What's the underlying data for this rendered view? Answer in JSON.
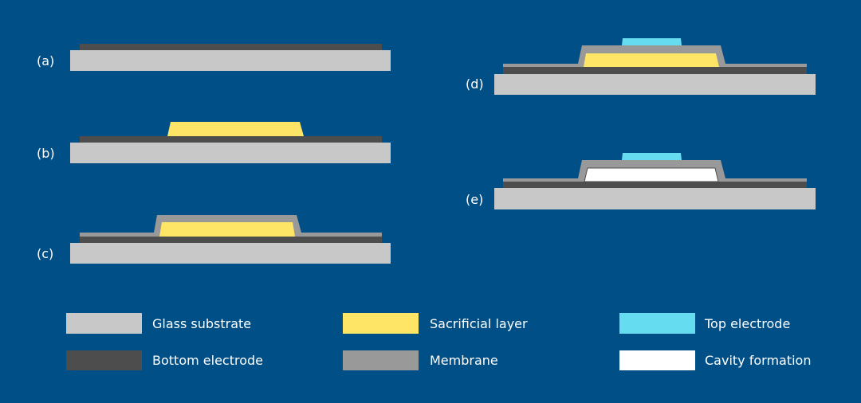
{
  "colors": {
    "background": "#004f86",
    "glass_substrate": "#c8c8c8",
    "bottom_electrode": "#4d4d4d",
    "membrane": "#999999",
    "sacrificial_layer": "#ffe566",
    "top_electrode": "#66dcf0",
    "cavity": "#ffffff"
  },
  "steps": [
    {
      "label": "(a)"
    },
    {
      "label": "(b)"
    },
    {
      "label": "(c)"
    },
    {
      "label": "(d)"
    },
    {
      "label": "(e)"
    }
  ],
  "legend": [
    {
      "label": "Glass substrate"
    },
    {
      "label": "Bottom electrode"
    },
    {
      "label": "Sacrificial layer"
    },
    {
      "label": "Membrane"
    },
    {
      "label": "Top electrode"
    },
    {
      "label": "Cavity formation"
    }
  ]
}
